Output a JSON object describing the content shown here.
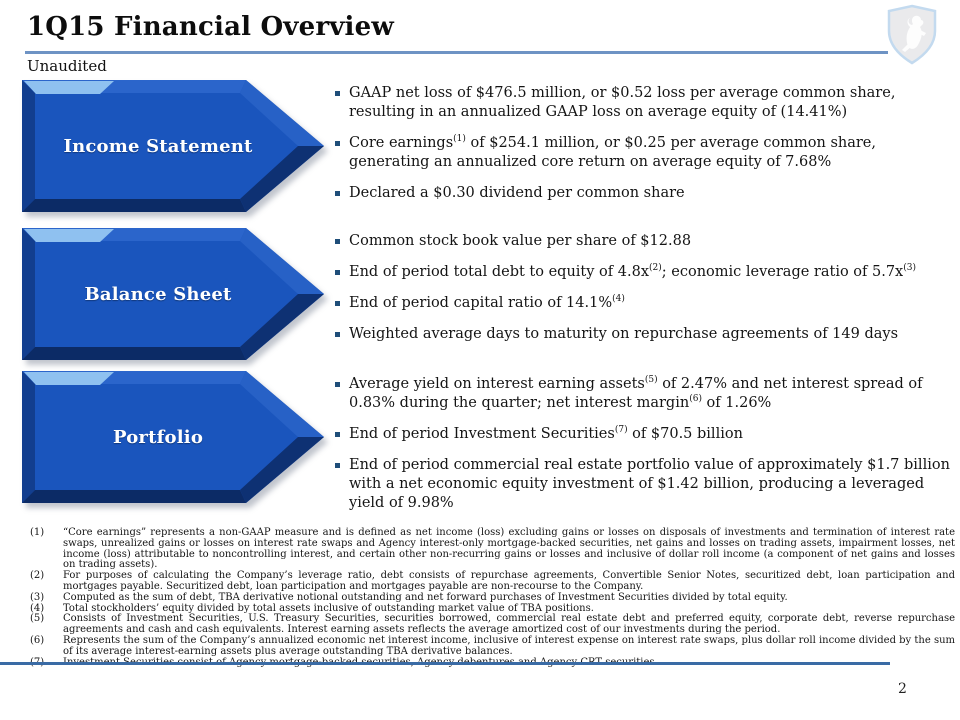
{
  "header": {
    "title": "1Q15 Financial Overview",
    "subtitle": "Unaudited"
  },
  "logo": {
    "icon": "shield-lion-crest"
  },
  "sections": [
    {
      "label": "Income Statement",
      "bullets": [
        "GAAP net loss of $476.5 million, or $0.52 loss per average common share, resulting in an annualized GAAP loss on average equity of (14.41%)",
        "Core earnings^(1) of $254.1 million, or $0.25 per average common share, generating an annualized core return on average equity of 7.68%",
        "Declared a $0.30 dividend per common share"
      ]
    },
    {
      "label": "Balance Sheet",
      "bullets": [
        "Common stock book value per share of $12.88",
        "End of period total debt to equity of 4.8x^(2); economic leverage ratio of 5.7x^(3)",
        "End of period capital ratio of 14.1%^(4)",
        "Weighted average days to maturity on repurchase agreements of 149 days"
      ]
    },
    {
      "label": "Portfolio",
      "bullets": [
        "Average yield on interest earning assets^(5) of 2.47% and net interest spread of 0.83% during the quarter; net interest margin^(6) of 1.26%",
        "End of period Investment Securities^(7) of $70.5 billion",
        "End of period commercial real estate portfolio value of approximately $1.7 billion with a net economic equity investment of $1.42 billion, producing a leveraged yield of 9.98%"
      ]
    }
  ],
  "footnotes": [
    {
      "num": "(1)",
      "text": "“Core earnings” represents a non-GAAP measure and is defined as net income (loss) excluding gains or losses on disposals of investments and termination of interest rate swaps, unrealized gains or losses on interest rate swaps and Agency interest-only mortgage-backed securities, net gains and losses on trading assets, impairment losses, net income (loss) attributable to noncontrolling interest, and certain other non-recurring gains or losses and inclusive of dollar roll income (a component of net gains and losses on trading assets)."
    },
    {
      "num": "(2)",
      "text": "For purposes of calculating the Company’s leverage ratio, debt consists of repurchase agreements, Convertible Senior Notes, securitized debt, loan participation and mortgages payable. Securitized debt, loan participation and mortgages payable are non-recourse to the Company."
    },
    {
      "num": "(3)",
      "text": "Computed as the sum of debt, TBA derivative notional outstanding and net forward purchases of Investment Securities divided by total equity."
    },
    {
      "num": "(4)",
      "text": "Total stockholders’ equity divided by total assets inclusive of outstanding market value of TBA positions."
    },
    {
      "num": "(5)",
      "text": "Consists of Investment Securities, U.S. Treasury Securities, securities borrowed, commercial real estate debt and preferred equity, corporate debt, reverse repurchase agreements and cash and cash equivalents. Interest earning assets reflects the average amortized cost of our investments during the period."
    },
    {
      "num": "(6)",
      "text": "Represents the sum of the Company’s annualized economic net interest income, inclusive of interest expense on interest rate swaps, plus dollar roll income divided by the sum of its average interest-earning assets plus average outstanding TBA derivative balances."
    },
    {
      "num": "(7)",
      "text": "Investment Securities consist of Agency mortgage-backed securities, Agency debentures and Agency CRT securities."
    }
  ],
  "footer": {
    "page_number": "2"
  },
  "colors": {
    "arrow_main": "#1A55BD",
    "arrow_accent": "#8FC1F0",
    "rule_top": "#6E93C4",
    "rule_bottom": "#3A6BA5",
    "bullet": "#1F4E79"
  }
}
